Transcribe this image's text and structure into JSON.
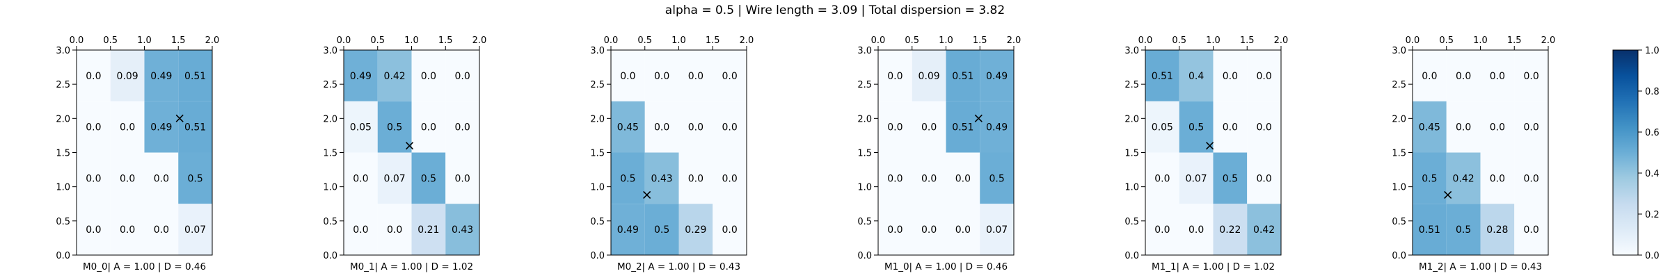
{
  "figure": {
    "suptitle": "alpha = 0.5 | Wire length = 3.09 | Total dispersion = 3.82"
  },
  "colormap": {
    "name": "Blues",
    "min": 0.0,
    "max": 1.0,
    "ticks": [
      "0.0",
      "0.2",
      "0.4",
      "0.6",
      "0.8",
      "1.0"
    ],
    "stops": [
      "#f7fbff",
      "#deebf7",
      "#c6dbef",
      "#9ecae1",
      "#6baed6",
      "#4292c6",
      "#2171b5",
      "#08519c",
      "#08306b"
    ]
  },
  "chart_data": [
    {
      "type": "heatmap",
      "xlabel": "M0_0| A = 1.00 | D = 0.46",
      "xlim": [
        0,
        2
      ],
      "ylim": [
        0,
        3
      ],
      "xticks": [
        "0.0",
        "0.5",
        "1.0",
        "1.5",
        "2.0"
      ],
      "yticks": [
        "0.0",
        "0.5",
        "1.0",
        "1.5",
        "2.0",
        "2.5",
        "3.0"
      ],
      "cells": [
        [
          "0.0",
          "0.09",
          "0.49",
          "0.51"
        ],
        [
          "0.0",
          "0.0",
          "0.49",
          "0.51"
        ],
        [
          "0.0",
          "0.0",
          "0.0",
          "0.5"
        ],
        [
          "0.0",
          "0.0",
          "0.0",
          "0.07"
        ]
      ],
      "marker": {
        "x": 1.52,
        "y": 2.0
      }
    },
    {
      "type": "heatmap",
      "xlabel": "M0_1| A = 1.00 | D = 1.02",
      "xlim": [
        0,
        2
      ],
      "ylim": [
        0,
        3
      ],
      "xticks": [
        "0.0",
        "0.5",
        "1.0",
        "1.5",
        "2.0"
      ],
      "yticks": [
        "0.0",
        "0.5",
        "1.0",
        "1.5",
        "2.0",
        "2.5",
        "3.0"
      ],
      "cells": [
        [
          "0.49",
          "0.42",
          "0.0",
          "0.0"
        ],
        [
          "0.05",
          "0.5",
          "0.0",
          "0.0"
        ],
        [
          "0.0",
          "0.07",
          "0.5",
          "0.0"
        ],
        [
          "0.0",
          "0.0",
          "0.21",
          "0.43"
        ]
      ],
      "marker": {
        "x": 0.97,
        "y": 1.6
      }
    },
    {
      "type": "heatmap",
      "xlabel": "M0_2| A = 1.00 | D = 0.43",
      "xlim": [
        0,
        2
      ],
      "ylim": [
        0,
        3
      ],
      "xticks": [
        "0.0",
        "0.5",
        "1.0",
        "1.5",
        "2.0"
      ],
      "yticks": [
        "0.0",
        "0.5",
        "1.0",
        "1.5",
        "2.0",
        "2.5",
        "3.0"
      ],
      "cells": [
        [
          "0.0",
          "0.0",
          "0.0",
          "0.0"
        ],
        [
          "0.45",
          "0.0",
          "0.0",
          "0.0"
        ],
        [
          "0.5",
          "0.43",
          "0.0",
          "0.0"
        ],
        [
          "0.49",
          "0.5",
          "0.29",
          "0.0"
        ]
      ],
      "marker": {
        "x": 0.53,
        "y": 0.88
      }
    },
    {
      "type": "heatmap",
      "xlabel": "M1_0| A = 1.00 | D = 0.46",
      "xlim": [
        0,
        2
      ],
      "ylim": [
        0,
        3
      ],
      "xticks": [
        "0.0",
        "0.5",
        "1.0",
        "1.5",
        "2.0"
      ],
      "yticks": [
        "0.0",
        "0.5",
        "1.0",
        "1.5",
        "2.0",
        "2.5",
        "3.0"
      ],
      "cells": [
        [
          "0.0",
          "0.09",
          "0.51",
          "0.49"
        ],
        [
          "0.0",
          "0.0",
          "0.51",
          "0.49"
        ],
        [
          "0.0",
          "0.0",
          "0.0",
          "0.5"
        ],
        [
          "0.0",
          "0.0",
          "0.0",
          "0.07"
        ]
      ],
      "marker": {
        "x": 1.48,
        "y": 2.0
      }
    },
    {
      "type": "heatmap",
      "xlabel": "M1_1| A = 1.00 | D = 1.02",
      "xlim": [
        0,
        2
      ],
      "ylim": [
        0,
        3
      ],
      "xticks": [
        "0.0",
        "0.5",
        "1.0",
        "1.5",
        "2.0"
      ],
      "yticks": [
        "0.0",
        "0.5",
        "1.0",
        "1.5",
        "2.0",
        "2.5",
        "3.0"
      ],
      "cells": [
        [
          "0.51",
          "0.4",
          "0.0",
          "0.0"
        ],
        [
          "0.05",
          "0.5",
          "0.0",
          "0.0"
        ],
        [
          "0.0",
          "0.07",
          "0.5",
          "0.0"
        ],
        [
          "0.0",
          "0.0",
          "0.22",
          "0.42"
        ]
      ],
      "marker": {
        "x": 0.95,
        "y": 1.6
      }
    },
    {
      "type": "heatmap",
      "xlabel": "M1_2| A = 1.00 | D = 0.43",
      "xlim": [
        0,
        2
      ],
      "ylim": [
        0,
        3
      ],
      "xticks": [
        "0.0",
        "0.5",
        "1.0",
        "1.5",
        "2.0"
      ],
      "yticks": [
        "0.0",
        "0.5",
        "1.0",
        "1.5",
        "2.0",
        "2.5",
        "3.0"
      ],
      "cells": [
        [
          "0.0",
          "0.0",
          "0.0",
          "0.0"
        ],
        [
          "0.45",
          "0.0",
          "0.0",
          "0.0"
        ],
        [
          "0.5",
          "0.42",
          "0.0",
          "0.0"
        ],
        [
          "0.51",
          "0.5",
          "0.28",
          "0.0"
        ]
      ],
      "marker": {
        "x": 0.52,
        "y": 0.88
      }
    }
  ]
}
